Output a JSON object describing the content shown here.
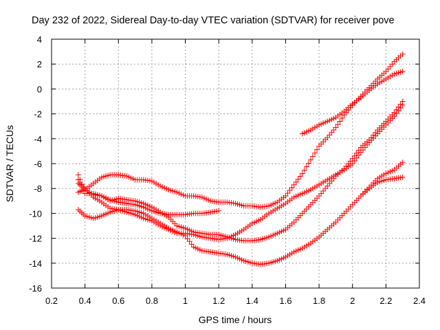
{
  "chart_data": {
    "type": "scatter",
    "title": "Day 232 of 2022, Sidereal Day-to-day VTEC variation (SDTVAR) for receiver pove",
    "xlabel": "GPS time / hours",
    "ylabel": "SDTVAR / TECUs",
    "xlim": [
      0.2,
      2.4
    ],
    "ylim": [
      -16,
      4
    ],
    "xticks": [
      "0.2",
      "0.4",
      "0.6",
      "0.8",
      "1",
      "1.2",
      "1.4",
      "1.6",
      "1.8",
      "2",
      "2.2",
      "2.4"
    ],
    "yticks": [
      "4",
      "2",
      "0",
      "-2",
      "-4",
      "-6",
      "-8",
      "-10",
      "-12",
      "-14",
      "-16"
    ],
    "grid": true,
    "marker": "plus",
    "color": "#ff0000",
    "series": [
      {
        "name": "series-1",
        "x": [
          0.36,
          0.4,
          0.45,
          0.5,
          0.55,
          0.6,
          0.65,
          0.7,
          0.75,
          0.8,
          0.85,
          0.9,
          0.95,
          1.0,
          1.05,
          1.1,
          1.15,
          1.2,
          1.25,
          1.3,
          1.35,
          1.4,
          1.45,
          1.5,
          1.55,
          1.6,
          1.65,
          1.7,
          1.75,
          1.8,
          1.85,
          1.9,
          1.95,
          2.0,
          2.05,
          2.1,
          2.15,
          2.2,
          2.25,
          2.3
        ],
        "y": [
          -8.3,
          -8.1,
          -7.6,
          -7.1,
          -6.9,
          -6.9,
          -7.0,
          -7.3,
          -7.3,
          -7.4,
          -7.8,
          -8.1,
          -8.3,
          -8.6,
          -8.6,
          -8.7,
          -9.0,
          -9.1,
          -9.1,
          -9.2,
          -9.4,
          -9.4,
          -9.5,
          -9.4,
          -9.1,
          -8.6,
          -7.7,
          -6.8,
          -5.7,
          -4.6,
          -3.9,
          -3.1,
          -2.1,
          -1.3,
          -0.6,
          0.1,
          0.8,
          1.4,
          2.2,
          2.8
        ]
      },
      {
        "name": "series-2",
        "x": [
          1.7,
          1.75,
          1.8,
          1.85,
          1.9,
          1.95,
          2.0,
          2.05,
          2.1,
          2.15,
          2.2,
          2.25,
          2.3
        ],
        "y": [
          -3.6,
          -3.3,
          -2.9,
          -2.6,
          -2.3,
          -1.8,
          -1.2,
          -0.7,
          -0.1,
          0.4,
          0.8,
          1.2,
          1.4
        ]
      },
      {
        "name": "series-3",
        "x": [
          0.36,
          0.4,
          0.45,
          0.5,
          0.55,
          0.6,
          0.65,
          0.7,
          0.75,
          0.8,
          0.85,
          0.9,
          0.95,
          1.0,
          1.05,
          1.1,
          1.15,
          1.2,
          1.25,
          1.3,
          1.35,
          1.4,
          1.45,
          1.5,
          1.55,
          1.6,
          1.65,
          1.7,
          1.75,
          1.8,
          1.85,
          1.9,
          1.95,
          2.0,
          2.05,
          2.1,
          2.15,
          2.2,
          2.25,
          2.3
        ],
        "y": [
          -6.9,
          -8.4,
          -8.4,
          -8.6,
          -9.0,
          -8.8,
          -8.9,
          -9.0,
          -9.2,
          -9.5,
          -9.9,
          -10.3,
          -11.0,
          -11.2,
          -11.5,
          -11.6,
          -11.7,
          -11.7,
          -11.9,
          -12.1,
          -12.2,
          -12.2,
          -12.1,
          -11.9,
          -11.6,
          -11.3,
          -10.7,
          -10.0,
          -9.3,
          -8.6,
          -7.8,
          -7.0,
          -6.4,
          -5.6,
          -4.7,
          -4.1,
          -3.3,
          -2.6,
          -1.9,
          -1.0
        ]
      },
      {
        "name": "series-4",
        "x": [
          0.36,
          0.4,
          0.45,
          0.5,
          0.55,
          0.6,
          0.65,
          0.7,
          0.75,
          0.8,
          0.85,
          0.9,
          0.95,
          1.0,
          1.05,
          1.1,
          1.15,
          1.2,
          1.25,
          1.3,
          1.35,
          1.4,
          1.45,
          1.5,
          1.55,
          1.6,
          1.65,
          1.7,
          1.75,
          1.8,
          1.85,
          1.9,
          1.95,
          2.0,
          2.05,
          2.1,
          2.15,
          2.2,
          2.25,
          2.3
        ],
        "y": [
          -7.6,
          -8.0,
          -8.7,
          -9.1,
          -9.6,
          -9.7,
          -9.9,
          -10.1,
          -10.4,
          -10.6,
          -11.0,
          -11.3,
          -11.6,
          -11.6,
          -11.7,
          -11.9,
          -12.0,
          -12.1,
          -12.0,
          -11.7,
          -11.3,
          -10.8,
          -10.5,
          -10.0,
          -9.6,
          -9.2,
          -8.7,
          -8.4,
          -8.1,
          -7.7,
          -7.3,
          -6.9,
          -6.5,
          -6.0,
          -5.1,
          -4.3,
          -3.6,
          -2.9,
          -2.2,
          -1.3
        ]
      },
      {
        "name": "series-5",
        "x": [
          0.36,
          0.4,
          0.45,
          0.5,
          0.55,
          0.6,
          0.65,
          0.7,
          0.75,
          0.8,
          0.85,
          0.9,
          0.95,
          1.0,
          1.05,
          1.1,
          1.15,
          1.2
        ],
        "y": [
          -7.3,
          -8.1,
          -8.5,
          -8.6,
          -8.9,
          -9.1,
          -9.2,
          -9.3,
          -9.5,
          -9.8,
          -10.0,
          -10.1,
          -10.1,
          -10.1,
          -10.0,
          -10.0,
          -9.9,
          -9.8
        ]
      },
      {
        "name": "series-6",
        "x": [
          0.36,
          0.4,
          0.45,
          0.5,
          0.55,
          0.6,
          0.65,
          0.7,
          0.75,
          0.8,
          0.85,
          0.9,
          0.95,
          1.0,
          1.05,
          1.1,
          1.15,
          1.2,
          1.25,
          1.3,
          1.35,
          1.4,
          1.45,
          1.5,
          1.55,
          1.6,
          1.65,
          1.7,
          1.75,
          1.8,
          1.85,
          1.9,
          1.95,
          2.0,
          2.05,
          2.1,
          2.15,
          2.2,
          2.25,
          2.3
        ],
        "y": [
          -9.7,
          -10.2,
          -10.4,
          -10.2,
          -9.9,
          -9.7,
          -9.7,
          -9.8,
          -10.0,
          -10.4,
          -10.8,
          -11.2,
          -11.5,
          -11.8,
          -12.7,
          -13.0,
          -13.1,
          -13.2,
          -13.3,
          -13.5,
          -13.8,
          -14.0,
          -14.1,
          -14.0,
          -13.8,
          -13.5,
          -13.1,
          -12.8,
          -12.4,
          -11.9,
          -11.3,
          -10.7,
          -10.0,
          -9.3,
          -8.6,
          -7.9,
          -7.2,
          -6.8,
          -6.5,
          -5.9
        ]
      },
      {
        "name": "series-7",
        "x": [
          2.05,
          2.1,
          2.15,
          2.2,
          2.25,
          2.3
        ],
        "y": [
          -8.6,
          -8.0,
          -7.5,
          -7.3,
          -7.2,
          -7.1
        ]
      }
    ]
  }
}
